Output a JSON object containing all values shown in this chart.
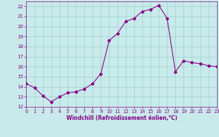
{
  "x": [
    0,
    1,
    2,
    3,
    4,
    5,
    6,
    7,
    8,
    9,
    10,
    11,
    12,
    13,
    14,
    15,
    16,
    17,
    18,
    19,
    20,
    21,
    22,
    23
  ],
  "y": [
    14.3,
    13.9,
    13.1,
    12.5,
    13.0,
    13.4,
    13.5,
    13.8,
    14.3,
    15.3,
    18.6,
    19.3,
    20.5,
    20.8,
    21.5,
    21.7,
    22.1,
    20.8,
    15.5,
    16.6,
    16.4,
    16.3,
    16.1,
    16.0
  ],
  "line_color": "#880088",
  "marker": "D",
  "marker_size": 2.0,
  "bg_color": "#c8eaea",
  "grid_color": "#a0cccc",
  "xlabel": "Windchill (Refroidissement éolien,°C)",
  "xlabel_color": "#880088",
  "tick_color": "#880088",
  "xlim": [
    0,
    23
  ],
  "ylim": [
    12,
    22.5
  ],
  "yticks": [
    12,
    13,
    14,
    15,
    16,
    17,
    18,
    19,
    20,
    21,
    22
  ],
  "xticks": [
    0,
    1,
    2,
    3,
    4,
    5,
    6,
    7,
    8,
    9,
    10,
    11,
    12,
    13,
    14,
    15,
    16,
    17,
    18,
    19,
    20,
    21,
    22,
    23
  ]
}
